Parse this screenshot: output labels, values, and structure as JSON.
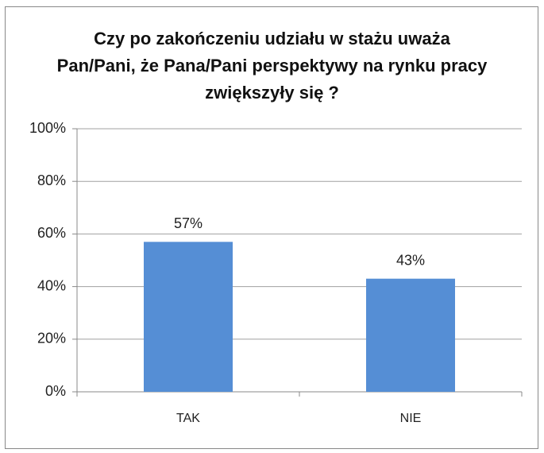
{
  "chart_data": {
    "type": "bar",
    "title": "Czy po zakończeniu udziału w stażu uważa Pan/Pani, że Pana/Pani perspektywy na rynku pracy zwiększyły się ?",
    "categories": [
      "TAK",
      "NIE"
    ],
    "values": [
      57,
      43
    ],
    "value_labels": [
      "57%",
      "43%"
    ],
    "color": "#558ed5",
    "ylim": [
      0,
      100
    ],
    "yticks": [
      {
        "value": 0,
        "label": "0%"
      },
      {
        "value": 20,
        "label": "20%"
      },
      {
        "value": 40,
        "label": "40%"
      },
      {
        "value": 60,
        "label": "60%"
      },
      {
        "value": 80,
        "label": "80%"
      },
      {
        "value": 100,
        "label": "100%"
      }
    ],
    "grid": true
  }
}
